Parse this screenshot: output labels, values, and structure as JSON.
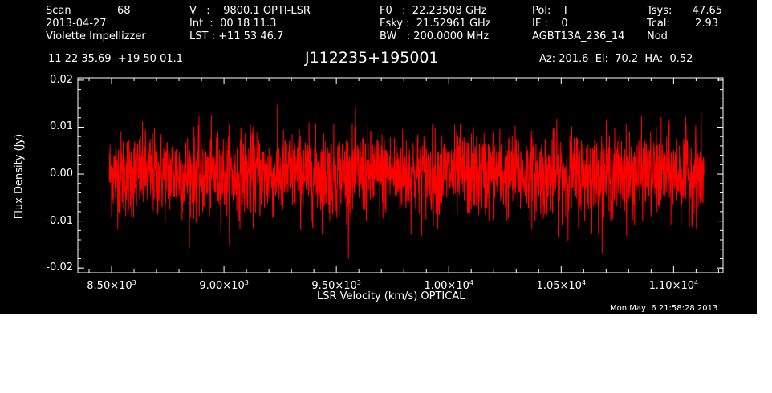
{
  "header": {
    "scan_label": "Scan",
    "scan_number": "68",
    "date": "2013-04-27",
    "observer": "Violette Impellizzer",
    "velocity": "V   :    9800.1 OPTI-LSR",
    "int_time": "Int  :  00 18 11.3",
    "lst": "LST : +11 53 46.7",
    "f0": "F0   :  22.23508 GHz",
    "fsky": "Fsky :  21.52961 GHz",
    "bw": "BW   : 200.0000 MHz",
    "pol": "Pol:    I",
    "if": "IF :    0",
    "project": "AGBT13A_236_14",
    "tsys_label": "Tsys:",
    "tsys_value": "47.65",
    "tcal_label": "Tcal:",
    "tcal_value": "2.93",
    "nod": "Nod",
    "coords": "11 22 35.69  +19 50 01.1",
    "source": "J112235+195001",
    "az_el_ha": "Az: 201.6  El:  70.2  HA:  0.52",
    "timestamp": "Mon May  6 21:58:28 2013"
  },
  "colors": {
    "background": "#000000",
    "axes": "#ffffff",
    "trace": "#ff0000"
  },
  "chart_data": {
    "type": "line",
    "xlabel": "LSR Velocity (km/s) OPTICAL",
    "ylabel": "Flux Density (Jy)",
    "xlim": [
      8350,
      11220
    ],
    "ylim": [
      -0.021,
      0.0205
    ],
    "x_ticks": [
      8500,
      9000,
      9500,
      10000,
      10500,
      11000
    ],
    "x_tick_labels": [
      {
        "mant": "8.50",
        "exp": "3"
      },
      {
        "mant": "9.00",
        "exp": "3"
      },
      {
        "mant": "9.50",
        "exp": "3"
      },
      {
        "mant": "1.00",
        "exp": "4"
      },
      {
        "mant": "1.05",
        "exp": "4"
      },
      {
        "mant": "1.10",
        "exp": "4"
      }
    ],
    "y_ticks": [
      0.02,
      0.01,
      0.0,
      -0.01,
      -0.02
    ],
    "y_tick_labels": [
      "0.02",
      "0.01",
      "0.00",
      "-0.01",
      "-0.02"
    ],
    "grid": false,
    "series": [
      {
        "x_start": 8490,
        "x_end": 11135,
        "noise_rms": 0.0045,
        "baseline": 0.0,
        "peak_max": 0.0178,
        "peak_min": -0.0181,
        "n_points": 2600
      }
    ]
  }
}
